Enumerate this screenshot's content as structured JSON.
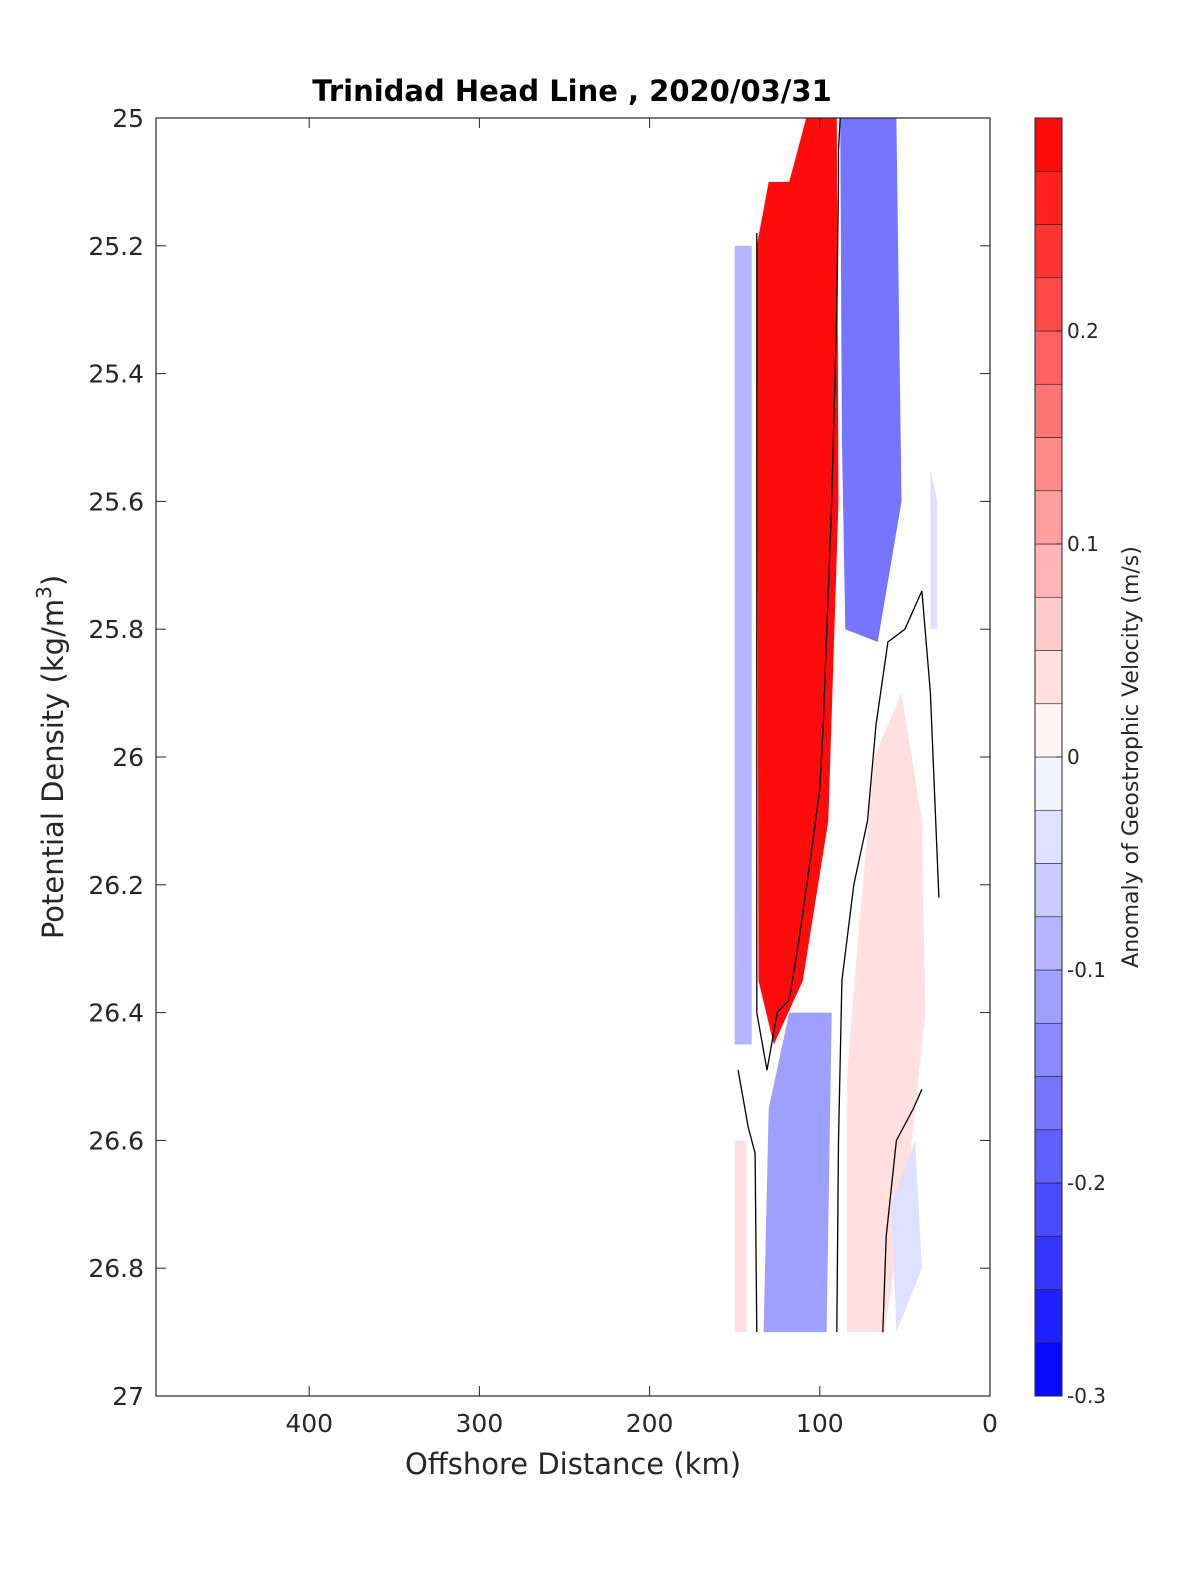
{
  "chart_data": {
    "type": "heatmap",
    "title": "Trinidad Head Line , 2020/03/31",
    "xlabel": "Offshore Distance (km)",
    "ylabel_main": "Potential Density (kg/m",
    "ylabel_sup": "3",
    "ylabel_end": ")",
    "colorbar_label": "Anomaly of Geostrophic Velocity (m/s)",
    "xlim": [
      490,
      0
    ],
    "x_reversed": true,
    "ylim": [
      25,
      27
    ],
    "y_reversed": true,
    "x_ticks": [
      "400",
      "300",
      "200",
      "100",
      "0"
    ],
    "x_tick_values": [
      400,
      300,
      200,
      100,
      0
    ],
    "y_ticks": [
      "25",
      "25.2",
      "25.4",
      "25.6",
      "25.8",
      "26",
      "26.2",
      "26.4",
      "26.6",
      "26.8",
      "27"
    ],
    "y_tick_values": [
      25,
      25.2,
      25.4,
      25.6,
      25.8,
      26,
      26.2,
      26.4,
      26.6,
      26.8,
      27
    ],
    "colorbar_range": [
      -0.3,
      0.3
    ],
    "colorbar_ticks": [
      "-0.3",
      "-0.2",
      "-0.1",
      "0",
      "0.1",
      "0.2"
    ],
    "colorbar_tick_values": [
      -0.3,
      -0.2,
      -0.1,
      0,
      0.1,
      0.2
    ],
    "colorbar_levels": 24,
    "colormap": {
      "negative": "#0000ff",
      "zero": "#ffffff",
      "positive": "#ff0000"
    },
    "zero_contour_color": "#000000",
    "grid": false,
    "regions": [
      {
        "name": "offshore-weak-negative",
        "value": -0.08,
        "polygon": [
          [
            150,
            25.2
          ],
          [
            140,
            25.2
          ],
          [
            140,
            26.45
          ],
          [
            150,
            26.45
          ]
        ]
      },
      {
        "name": "core-positive-jet",
        "value": 0.3,
        "polygon": [
          [
            130,
            25.1
          ],
          [
            118,
            25.1
          ],
          [
            108,
            25.0
          ],
          [
            90,
            25.0
          ],
          [
            89,
            25.6
          ],
          [
            95,
            26.1
          ],
          [
            110,
            26.35
          ],
          [
            127,
            26.45
          ],
          [
            136,
            26.35
          ],
          [
            137,
            25.2
          ]
        ]
      },
      {
        "name": "nearshore-negative",
        "value": -0.16,
        "polygon": [
          [
            88,
            25.0
          ],
          [
            55,
            25.0
          ],
          [
            52,
            25.6
          ],
          [
            66,
            25.82
          ],
          [
            85,
            25.8
          ],
          [
            87,
            25.5
          ]
        ]
      },
      {
        "name": "nearshore-weak-negative-edge",
        "value": -0.04,
        "polygon": [
          [
            35,
            25.55
          ],
          [
            31,
            25.6
          ],
          [
            31,
            25.8
          ],
          [
            35,
            25.8
          ]
        ]
      },
      {
        "name": "middepth-positive",
        "value": 0.04,
        "polygon": [
          [
            52,
            25.9
          ],
          [
            40,
            26.1
          ],
          [
            38,
            26.4
          ],
          [
            48,
            26.65
          ],
          [
            62,
            26.9
          ],
          [
            84,
            26.9
          ],
          [
            84,
            26.5
          ],
          [
            78,
            26.3
          ],
          [
            68,
            26.0
          ]
        ]
      },
      {
        "name": "deep-negative",
        "value": -0.12,
        "polygon": [
          [
            133,
            26.9
          ],
          [
            96,
            26.9
          ],
          [
            93,
            26.4
          ],
          [
            118,
            26.4
          ],
          [
            130,
            26.55
          ]
        ]
      },
      {
        "name": "deep-weak-negative-nearshore",
        "value": -0.04,
        "polygon": [
          [
            55,
            26.9
          ],
          [
            40,
            26.8
          ],
          [
            44,
            26.6
          ],
          [
            58,
            26.7
          ]
        ]
      },
      {
        "name": "deep-weak-positive-offshore",
        "value": 0.03,
        "polygon": [
          [
            150,
            26.9
          ],
          [
            143,
            26.9
          ],
          [
            143,
            26.6
          ],
          [
            150,
            26.6
          ]
        ]
      }
    ],
    "zero_contours": [
      {
        "x": [
          137,
          137,
          131,
          125,
          118,
          113,
          105,
          100,
          98,
          93,
          90,
          89,
          89,
          88
        ],
        "y": [
          25.18,
          26.4,
          26.49,
          26.4,
          26.38,
          26.3,
          26.15,
          26.05,
          25.95,
          25.6,
          25.3,
          25.1,
          25.05,
          25.0
        ]
      },
      {
        "x": [
          90,
          89,
          87,
          80,
          72,
          67,
          60,
          50,
          40,
          35,
          30
        ],
        "y": [
          26.9,
          26.6,
          26.35,
          26.2,
          26.1,
          25.95,
          25.82,
          25.8,
          25.74,
          25.9,
          26.22
        ]
      },
      {
        "x": [
          63,
          61,
          55,
          45,
          40
        ],
        "y": [
          26.9,
          26.75,
          26.6,
          26.55,
          26.52
        ]
      },
      {
        "x": [
          148,
          142,
          138,
          137
        ],
        "y": [
          26.49,
          26.58,
          26.62,
          26.9
        ]
      }
    ]
  }
}
